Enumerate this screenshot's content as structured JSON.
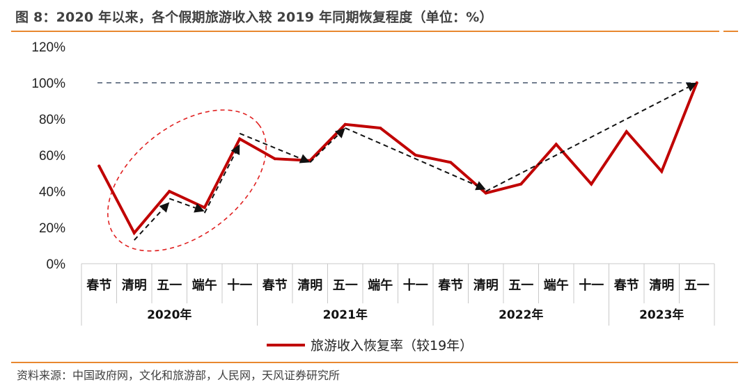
{
  "figure": {
    "title": "图 8：2020 年以来，各个假期旅游收入较 2019 年同期恢复程度（单位：%）",
    "source": "资料来源：中国政府网，文化和旅游部，人民网，天风证券研究所"
  },
  "colors": {
    "series": "#c00000",
    "accent_rule": "#e8872f",
    "reference_line": "#44546a",
    "trend_arrows": "#111111",
    "highlight_ellipse": "#e02020"
  },
  "chart_data": {
    "type": "line",
    "title": "",
    "xlabel": "",
    "ylabel": "",
    "ylim": [
      0,
      120
    ],
    "yticks": [
      "0%",
      "20%",
      "40%",
      "60%",
      "80%",
      "100%",
      "120%"
    ],
    "grid": false,
    "legend_position": "bottom",
    "categories": [
      "春节",
      "清明",
      "五一",
      "端午",
      "十一",
      "春节",
      "清明",
      "五一",
      "端午",
      "十一",
      "春节",
      "清明",
      "五一",
      "端午",
      "十一",
      "春节",
      "清明",
      "五一"
    ],
    "groups": [
      {
        "label": "2020年",
        "count": 5
      },
      {
        "label": "2021年",
        "count": 5
      },
      {
        "label": "2022年",
        "count": 5
      },
      {
        "label": "2023年",
        "count": 3
      }
    ],
    "series": [
      {
        "name": "旅游收入恢复率（较19年）",
        "values": [
          54,
          17,
          40,
          31,
          69,
          58,
          57,
          77,
          75,
          60,
          56,
          39,
          44,
          66,
          44,
          73,
          51,
          100
        ]
      }
    ],
    "annotations": {
      "reference_line_value": 100,
      "trend_arrows": [
        {
          "from": [
            1,
            13
          ],
          "to": [
            2,
            34
          ]
        },
        {
          "from": [
            2,
            36
          ],
          "to": [
            3,
            29
          ]
        },
        {
          "from": [
            3,
            28
          ],
          "to": [
            4,
            66
          ]
        },
        {
          "from": [
            4,
            72
          ],
          "to": [
            6,
            56
          ]
        },
        {
          "from": [
            6,
            56
          ],
          "to": [
            7,
            75
          ]
        },
        {
          "from": [
            7,
            75
          ],
          "to": [
            11,
            41
          ]
        },
        {
          "from": [
            11,
            40
          ],
          "to": [
            17,
            100
          ]
        }
      ],
      "highlight_ellipse_around": [
        1,
        4
      ]
    }
  }
}
